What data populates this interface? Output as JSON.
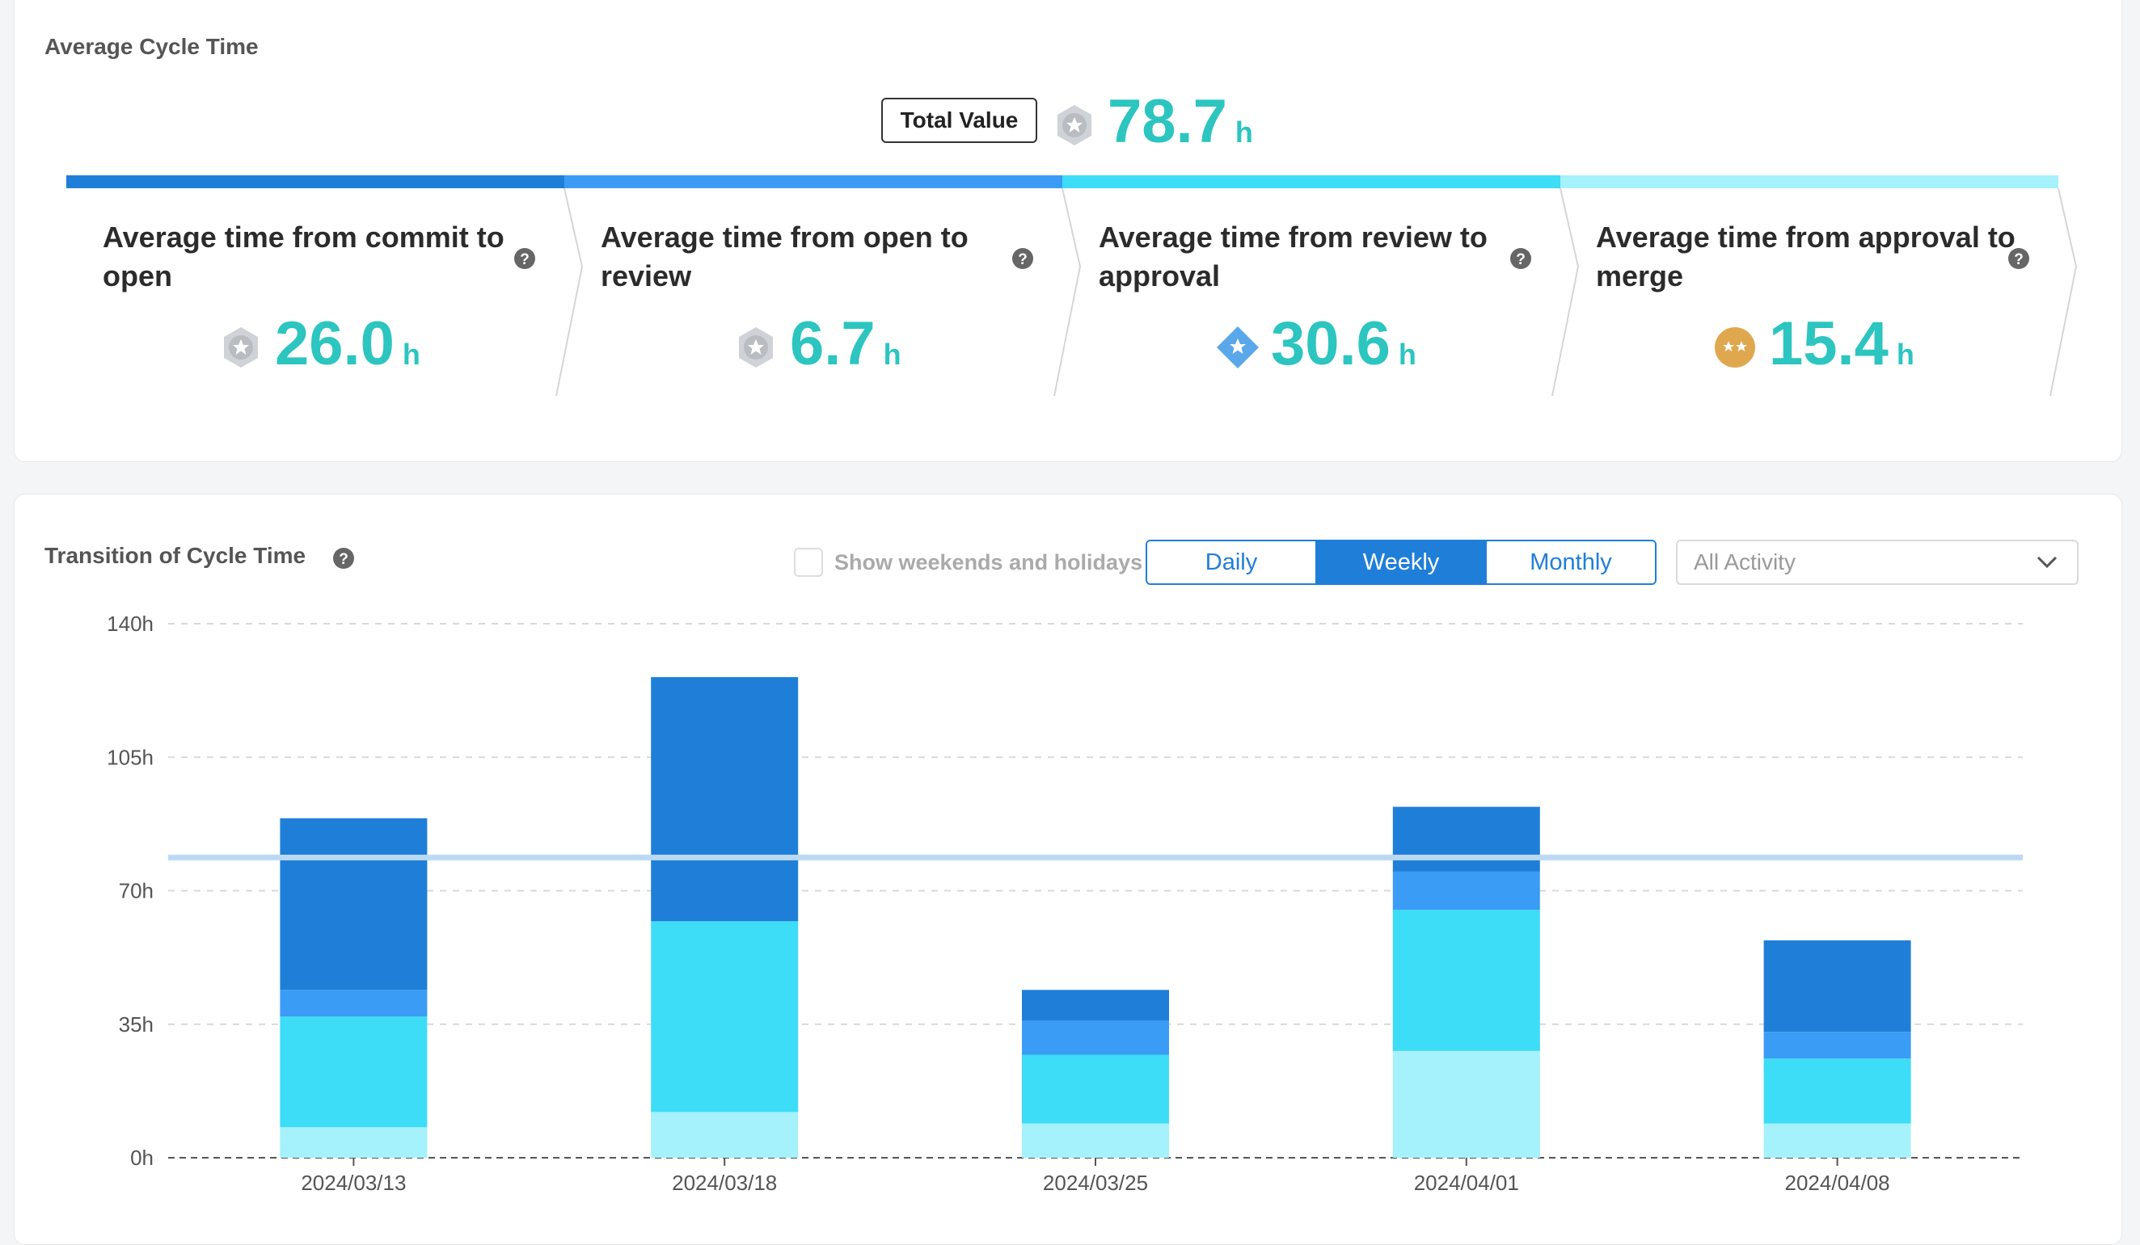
{
  "summary": {
    "title": "Average Cycle Time",
    "total_label": "Total Value",
    "total_value": "78.7",
    "unit": "h",
    "total_icon": "silver-badge-icon",
    "stages": [
      {
        "title": "Average time from commit to open",
        "value": "26.0",
        "unit": "h",
        "icon": "silver-badge-icon",
        "color": "#1f7fd8"
      },
      {
        "title": "Average time from open to review",
        "value": "6.7",
        "unit": "h",
        "icon": "silver-badge-icon",
        "color": "#3a9cf5"
      },
      {
        "title": "Average time from review to approval",
        "value": "30.6",
        "unit": "h",
        "icon": "diamond-star-icon",
        "color": "#3ddcf7"
      },
      {
        "title": "Average time from approval to merge",
        "value": "15.4",
        "unit": "h",
        "icon": "gold-badge-icon",
        "color": "#a5f1fc"
      }
    ]
  },
  "trend": {
    "title": "Transition of Cycle Time",
    "weekend_label": "Show weekends and holidays",
    "periods": [
      "Daily",
      "Weekly",
      "Monthly"
    ],
    "active_period": "Weekly",
    "activity_select": "All Activity"
  },
  "chart_data": {
    "type": "bar",
    "stacked": true,
    "categories": [
      "2024/03/13",
      "2024/03/18",
      "2024/03/25",
      "2024/04/01",
      "2024/04/08"
    ],
    "series": [
      {
        "name": "Average time from approval to merge",
        "color": "#a5f1fc",
        "values": [
          8,
          12,
          9,
          28,
          9
        ]
      },
      {
        "name": "Average time from review to approval",
        "color": "#3ddcf7",
        "values": [
          29,
          50,
          18,
          37,
          17
        ]
      },
      {
        "name": "Average time from open to review",
        "color": "#3a9cf5",
        "values": [
          7,
          0,
          9,
          10,
          7
        ]
      },
      {
        "name": "Average time from commit to open",
        "color": "#1f7fd8",
        "values": [
          45,
          64,
          8,
          17,
          24
        ]
      }
    ],
    "reference_line": {
      "value": 78.7,
      "color": "#bcd9f3"
    },
    "yticks": [
      "0h",
      "35h",
      "70h",
      "105h",
      "140h"
    ],
    "ylim": [
      0,
      140
    ]
  }
}
